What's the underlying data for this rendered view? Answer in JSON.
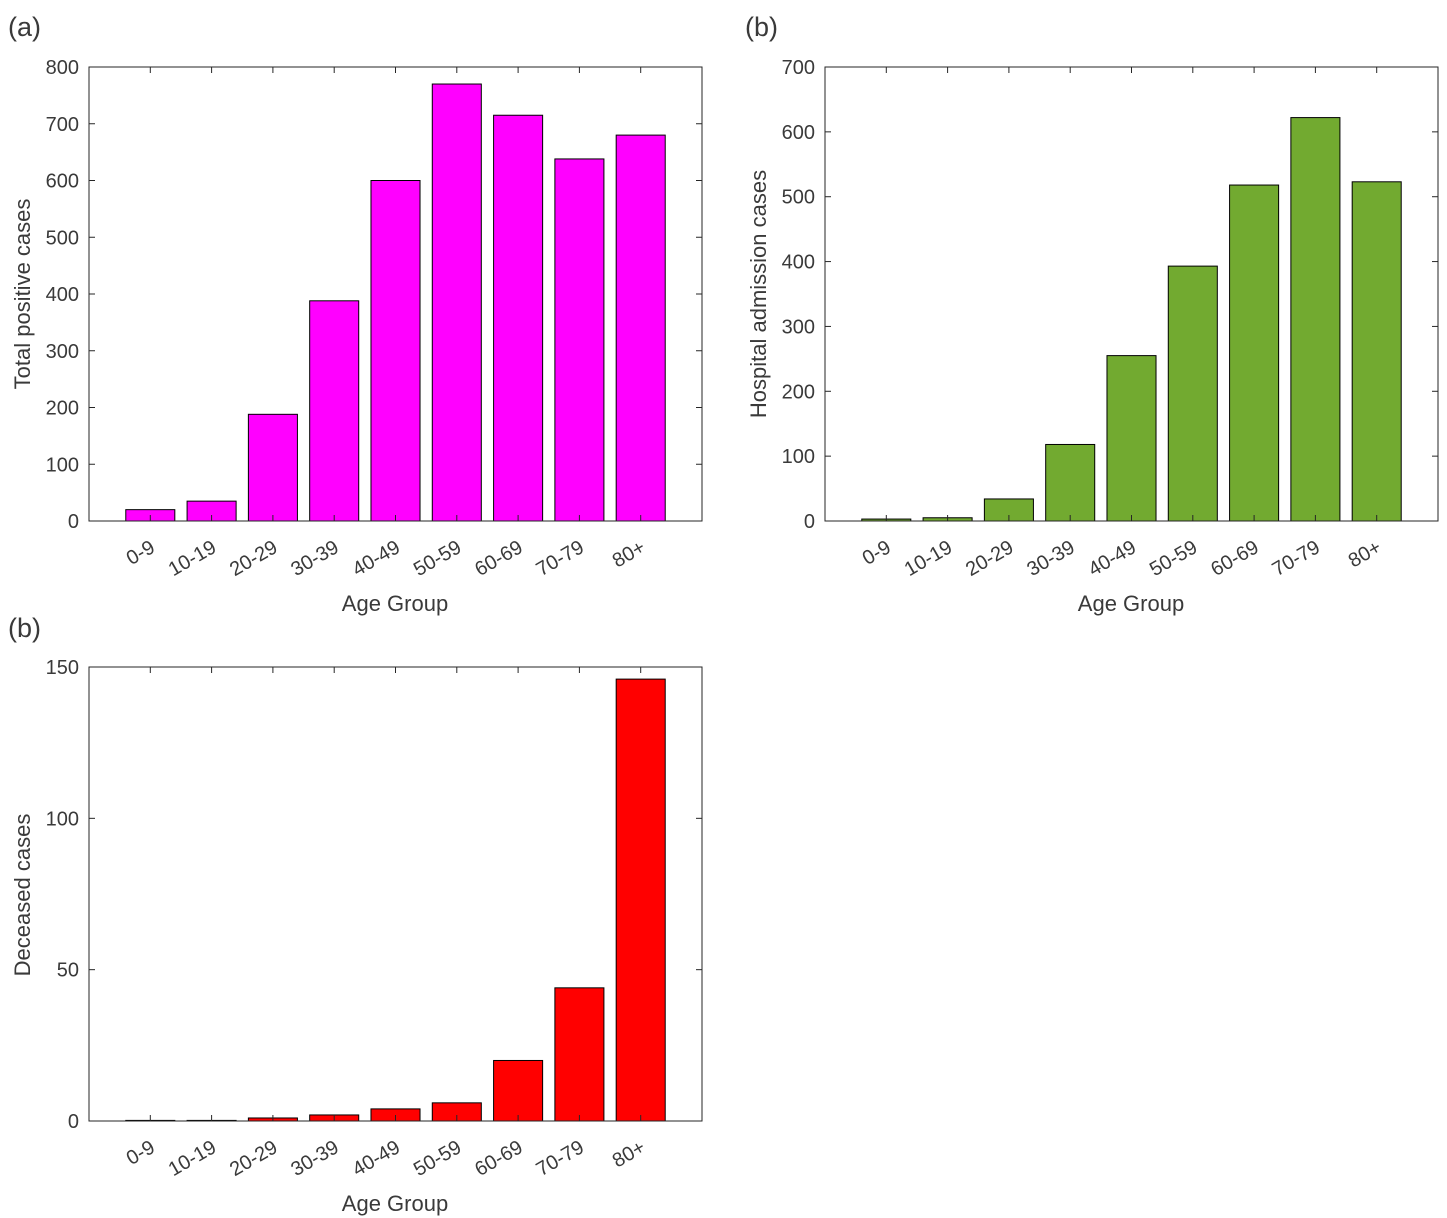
{
  "chart_data": [
    {
      "panel_label": "(a)",
      "type": "bar",
      "categories": [
        "0-9",
        "10-19",
        "20-29",
        "30-39",
        "40-49",
        "50-59",
        "60-69",
        "70-79",
        "80+"
      ],
      "values": [
        20,
        35,
        188,
        388,
        600,
        770,
        715,
        638,
        680
      ],
      "title": "",
      "xlabel": "Age Group",
      "ylabel": "Total positive cases",
      "ylim": [
        0,
        800
      ],
      "yticks": [
        0,
        100,
        200,
        300,
        400,
        500,
        600,
        700,
        800
      ],
      "bar_color": "#ff00ff",
      "grid": false,
      "legend": "none"
    },
    {
      "panel_label": "(b)",
      "type": "bar",
      "categories": [
        "0-9",
        "10-19",
        "20-29",
        "30-39",
        "40-49",
        "50-59",
        "60-69",
        "70-79",
        "80+"
      ],
      "values": [
        3,
        5,
        34,
        118,
        255,
        393,
        518,
        622,
        523
      ],
      "title": "",
      "xlabel": "Age Group",
      "ylabel": "Hospital admission cases",
      "ylim": [
        0,
        700
      ],
      "yticks": [
        0,
        100,
        200,
        300,
        400,
        500,
        600,
        700
      ],
      "bar_color": "#72aa30",
      "grid": false,
      "legend": "none"
    },
    {
      "panel_label": "(b)",
      "type": "bar",
      "categories": [
        "0-9",
        "10-19",
        "20-29",
        "30-39",
        "40-49",
        "50-59",
        "60-69",
        "70-79",
        "80+"
      ],
      "values": [
        0,
        0,
        1,
        2,
        4,
        6,
        20,
        44,
        146
      ],
      "title": "",
      "xlabel": "Age Group",
      "ylabel": "Deceased cases",
      "ylim": [
        0,
        150
      ],
      "yticks": [
        0,
        50,
        100,
        150
      ],
      "bar_color": "#ff0000",
      "grid": false,
      "legend": "none"
    }
  ]
}
